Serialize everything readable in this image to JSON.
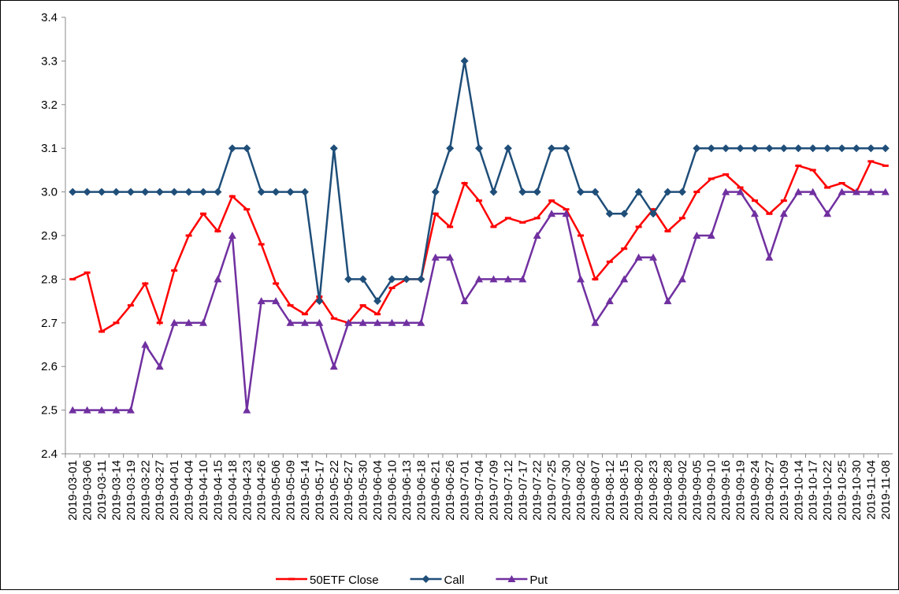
{
  "chart_data": {
    "type": "line",
    "categories": [
      "2019-03-01",
      "2019-03-06",
      "2019-03-11",
      "2019-03-14",
      "2019-03-19",
      "2019-03-22",
      "2019-03-27",
      "2019-04-01",
      "2019-04-04",
      "2019-04-10",
      "2019-04-15",
      "2019-04-18",
      "2019-04-23",
      "2019-04-26",
      "2019-05-06",
      "2019-05-09",
      "2019-05-14",
      "2019-05-17",
      "2019-05-22",
      "2019-05-27",
      "2019-05-30",
      "2019-06-04",
      "2019-06-10",
      "2019-06-13",
      "2019-06-18",
      "2019-06-21",
      "2019-06-26",
      "2019-07-01",
      "2019-07-04",
      "2019-07-09",
      "2019-07-12",
      "2019-07-17",
      "2019-07-22",
      "2019-07-25",
      "2019-07-30",
      "2019-08-02",
      "2019-08-07",
      "2019-08-12",
      "2019-08-15",
      "2019-08-20",
      "2019-08-23",
      "2019-08-28",
      "2019-09-02",
      "2019-09-05",
      "2019-09-10",
      "2019-09-16",
      "2019-09-19",
      "2019-09-24",
      "2019-09-27",
      "2019-10-09",
      "2019-10-14",
      "2019-10-17",
      "2019-10-22",
      "2019-10-25",
      "2019-10-30",
      "2019-11-04",
      "2019-11-08"
    ],
    "series": [
      {
        "name": "50ETF Close",
        "color": "#ff0000",
        "marker": "dash",
        "values": [
          2.8,
          2.815,
          2.68,
          2.7,
          2.74,
          2.79,
          2.7,
          2.82,
          2.9,
          2.95,
          2.91,
          2.99,
          2.96,
          2.88,
          2.79,
          2.74,
          2.72,
          2.76,
          2.71,
          2.7,
          2.74,
          2.72,
          2.78,
          2.8,
          2.8,
          2.95,
          2.92,
          3.02,
          2.98,
          2.92,
          2.94,
          2.93,
          2.94,
          2.98,
          2.96,
          2.9,
          2.8,
          2.84,
          2.87,
          2.92,
          2.96,
          2.91,
          2.94,
          3.0,
          3.03,
          3.04,
          3.01,
          2.98,
          2.95,
          2.98,
          3.06,
          3.05,
          3.01,
          3.02,
          3.0,
          3.07,
          3.06
        ]
      },
      {
        "name": "Call",
        "color": "#1f4e79",
        "marker": "diamond",
        "values": [
          3.0,
          3.0,
          3.0,
          3.0,
          3.0,
          3.0,
          3.0,
          3.0,
          3.0,
          3.0,
          3.0,
          3.1,
          3.1,
          3.0,
          3.0,
          3.0,
          3.0,
          2.75,
          3.1,
          2.8,
          2.8,
          2.75,
          2.8,
          2.8,
          2.8,
          3.0,
          3.1,
          3.3,
          3.1,
          3.0,
          3.1,
          3.0,
          3.0,
          3.1,
          3.1,
          3.0,
          3.0,
          2.95,
          2.95,
          3.0,
          2.95,
          3.0,
          3.0,
          3.1,
          3.1,
          3.1,
          3.1,
          3.1,
          3.1,
          3.1,
          3.1,
          3.1,
          3.1,
          3.1,
          3.1,
          3.1,
          3.1
        ]
      },
      {
        "name": "Put",
        "color": "#7030a0",
        "marker": "triangle",
        "values": [
          2.5,
          2.5,
          2.5,
          2.5,
          2.5,
          2.65,
          2.6,
          2.7,
          2.7,
          2.7,
          2.8,
          2.9,
          2.5,
          2.75,
          2.75,
          2.7,
          2.7,
          2.7,
          2.6,
          2.7,
          2.7,
          2.7,
          2.7,
          2.7,
          2.7,
          2.85,
          2.85,
          2.75,
          2.8,
          2.8,
          2.8,
          2.8,
          2.9,
          2.95,
          2.95,
          2.8,
          2.7,
          2.75,
          2.8,
          2.85,
          2.85,
          2.75,
          2.8,
          2.9,
          2.9,
          3.0,
          3.0,
          2.95,
          2.85,
          2.95,
          3.0,
          3.0,
          2.95,
          3.0,
          3.0,
          3.0,
          3.0
        ]
      }
    ],
    "ylim": [
      2.4,
      3.4
    ],
    "yticks": [
      2.4,
      2.5,
      2.6,
      2.7,
      2.8,
      2.9,
      {
        "value": 3,
        "label": "3.0"
      },
      3.1,
      3.2,
      3.3,
      3.4
    ],
    "legend": "bottom"
  }
}
